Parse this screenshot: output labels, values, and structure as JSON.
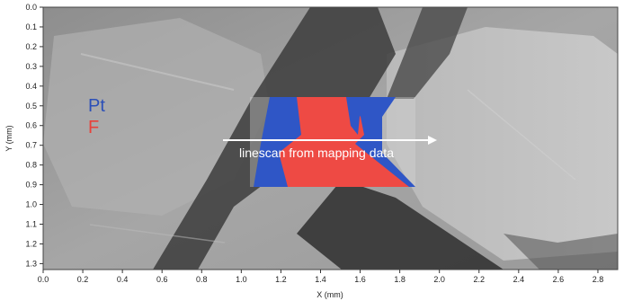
{
  "figure": {
    "x_axis_label": "X (mm)",
    "y_axis_label": "Y (mm)",
    "x_range": [
      0.0,
      2.9
    ],
    "y_range": [
      0.0,
      1.33
    ],
    "x_ticks": [
      "0.0",
      "0.2",
      "0.4",
      "0.6",
      "0.8",
      "1.0",
      "1.2",
      "1.4",
      "1.6",
      "1.8",
      "2.0",
      "2.2",
      "2.4",
      "2.6",
      "2.8"
    ],
    "y_ticks": [
      "0.0",
      "0.1",
      "0.2",
      "0.3",
      "0.4",
      "0.5",
      "0.6",
      "0.7",
      "0.8",
      "0.9",
      "1.0",
      "1.1",
      "1.2",
      "1.3"
    ],
    "legend": [
      {
        "label": "Pt",
        "color": "#2b4fb8"
      },
      {
        "label": "F",
        "color": "#e8413a"
      }
    ],
    "annotation": "linescan from mapping data",
    "map_region_x_mm": [
      0.98,
      1.83
    ],
    "map_region_y_mm": [
      0.45,
      0.89
    ]
  }
}
